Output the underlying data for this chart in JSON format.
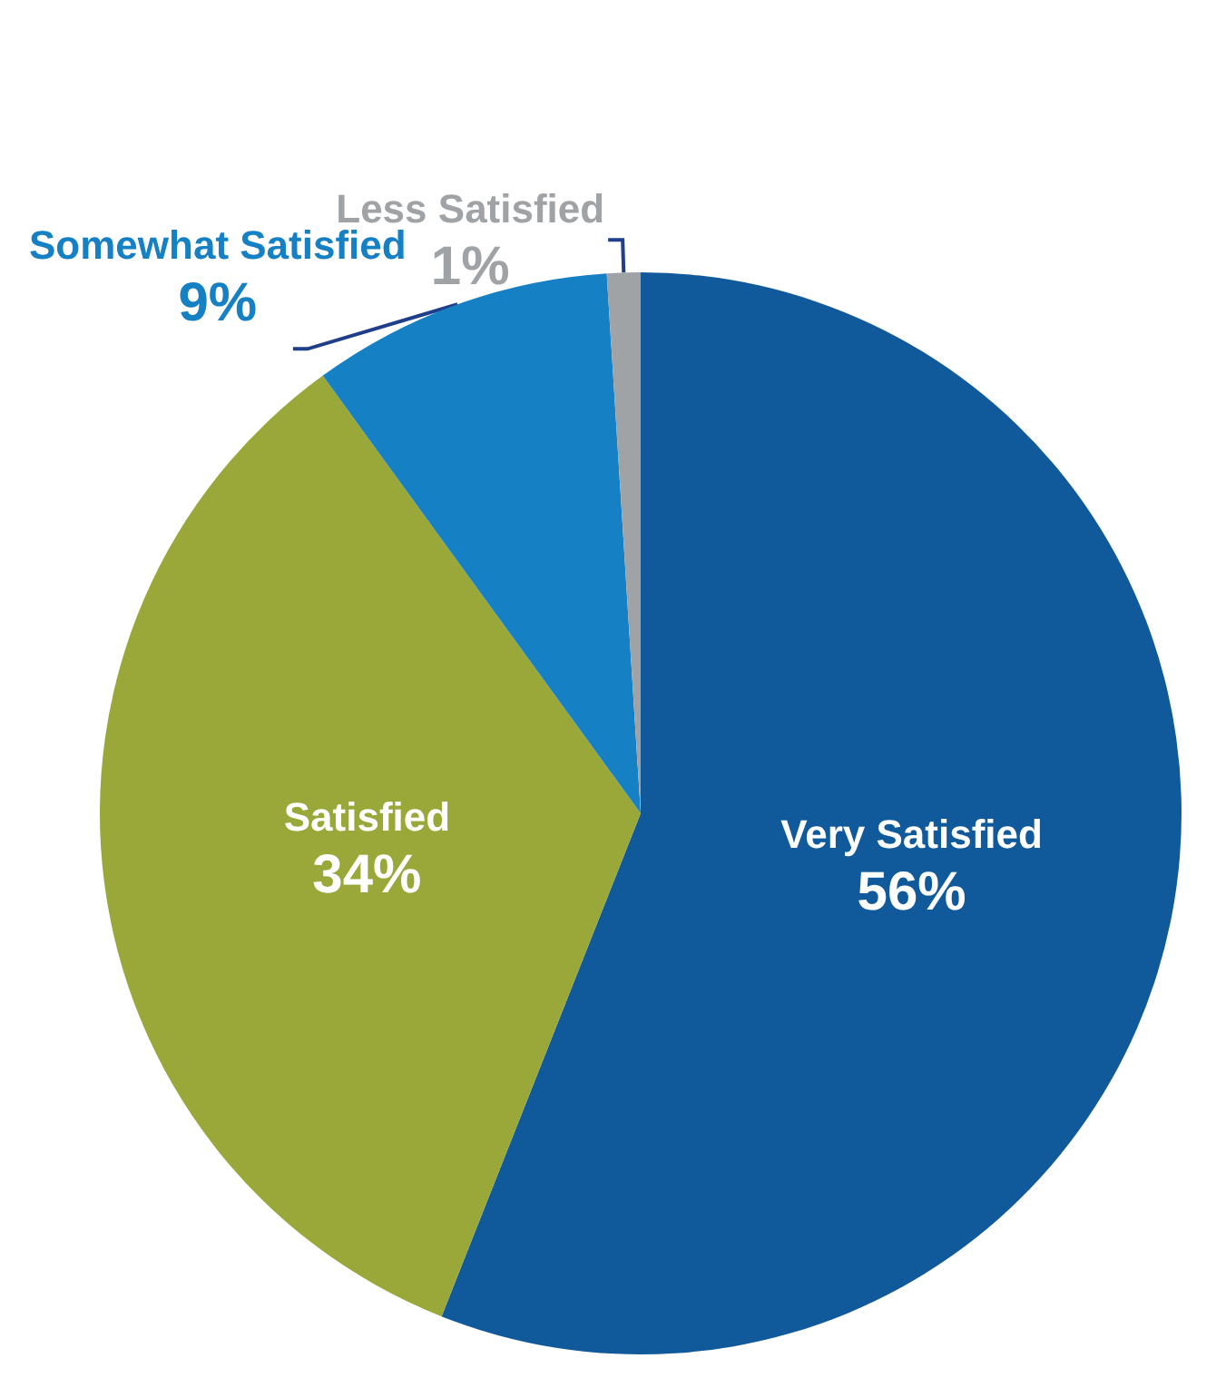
{
  "chart_data": {
    "type": "pie",
    "categories": [
      "Very Satisfied",
      "Satisfied",
      "Somewhat Satisfied",
      "Less Satisfied"
    ],
    "values": [
      56,
      34,
      9,
      1
    ],
    "value_labels": [
      "56%",
      "34%",
      "9%",
      "1%"
    ],
    "colors": [
      "#10599a",
      "#9aa83a",
      "#1680c4",
      "#a0a3a6"
    ]
  }
}
